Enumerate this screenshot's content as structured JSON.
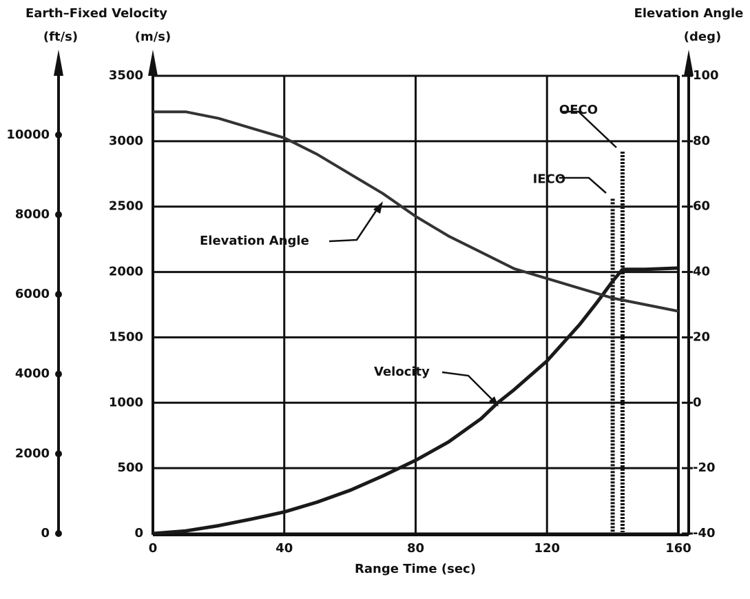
{
  "chart_data": {
    "type": "line",
    "x_label": "Range Time (sec)",
    "y_title": "Earth–Fixed Velocity",
    "y_label": "(m/s)",
    "yft_label": "(ft/s)",
    "y2_title": "Elevation Angle",
    "y2_label": "(deg)",
    "xlim": [
      0,
      160
    ],
    "xticks": [
      0,
      40,
      80,
      120,
      160
    ],
    "ylim": [
      0,
      3500
    ],
    "yticks": [
      0,
      500,
      1000,
      1500,
      2000,
      2500,
      3000,
      3500
    ],
    "y2lim": [
      -40,
      100
    ],
    "y2ticks": [
      -40,
      -20,
      0,
      20,
      40,
      60,
      80,
      100
    ],
    "yftlim": [
      0,
      11483
    ],
    "yftticks": [
      0,
      2000,
      4000,
      6000,
      8000,
      10000
    ],
    "grid": true,
    "series": [
      {
        "name": "Velocity",
        "color": "#1a1a1a",
        "x": [
          0,
          10,
          20,
          30,
          40,
          50,
          60,
          70,
          80,
          90,
          100,
          105,
          110,
          120,
          130,
          135,
          140,
          143,
          150,
          160
        ],
        "values": [
          0,
          20,
          60,
          110,
          165,
          240,
          330,
          440,
          560,
          700,
          880,
          1000,
          1100,
          1320,
          1600,
          1760,
          1930,
          2020,
          2020,
          2030
        ]
      },
      {
        "name": "Elevation Angle",
        "color": "#333333",
        "axis": "y2",
        "x": [
          0,
          10,
          20,
          30,
          40,
          50,
          60,
          70,
          80,
          90,
          100,
          110,
          120,
          130,
          140,
          150,
          160
        ],
        "values": [
          89,
          89,
          87,
          84,
          81,
          76,
          70,
          64,
          57,
          51,
          46,
          41,
          38,
          35,
          32,
          30,
          28
        ]
      }
    ],
    "events": [
      {
        "label": "IECO",
        "x": 140,
        "y": 2560
      },
      {
        "label": "OECO",
        "x": 143,
        "y": 2920
      }
    ]
  }
}
